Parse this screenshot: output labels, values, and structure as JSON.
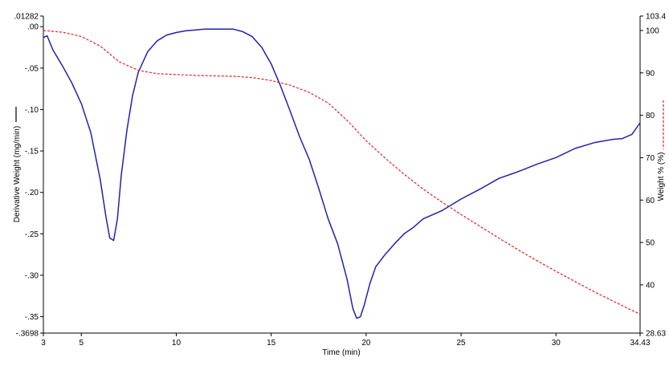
{
  "chart_data": {
    "type": "line",
    "xlabel": "Time (min)",
    "ylabel_left": "Derivative Weight (mg/min)",
    "ylabel_right": "Weight % (%)",
    "xlim": [
      3,
      34.43
    ],
    "ylim_left": [
      -0.3698,
      0.01282
    ],
    "ylim_right": [
      28.63,
      103.4
    ],
    "x_ticks": [
      3,
      5,
      10,
      15,
      20,
      25,
      30,
      34.43
    ],
    "x_tick_labels": [
      "3",
      "5",
      "10",
      "15",
      "20",
      "25",
      "30",
      "34.43"
    ],
    "left_ticks": [
      0.01282,
      0.0,
      -0.05,
      -0.1,
      -0.15,
      -0.2,
      -0.25,
      -0.3,
      -0.35,
      -0.3698
    ],
    "left_tick_labels": [
      ".01282",
      ".00",
      "-.05",
      "-.10",
      "-.15",
      "-.20",
      "-.25",
      "-.30",
      "-.35",
      "-.3698"
    ],
    "right_ticks": [
      103.4,
      100,
      90,
      80,
      70,
      60,
      50,
      40,
      28.63
    ],
    "right_tick_labels": [
      "103.4",
      "100",
      "90",
      "80",
      "70",
      "60",
      "50",
      "40",
      "28.63"
    ],
    "grid": false,
    "series": [
      {
        "axis": "left",
        "color": "#2222aa",
        "style": "solid",
        "x": [
          3.0,
          3.2,
          3.5,
          4.0,
          4.5,
          5.0,
          5.5,
          6.0,
          6.3,
          6.5,
          6.7,
          6.9,
          7.1,
          7.4,
          7.7,
          8.0,
          8.5,
          9.0,
          9.5,
          10.0,
          10.5,
          11.0,
          11.5,
          12.0,
          12.5,
          13.0,
          13.5,
          14.0,
          14.5,
          15.0,
          15.5,
          16.0,
          16.5,
          17.0,
          17.5,
          18.0,
          18.5,
          19.0,
          19.3,
          19.5,
          19.7,
          19.9,
          20.2,
          20.5,
          21.0,
          21.5,
          22.0,
          22.5,
          23.0,
          24.0,
          25.0,
          26.0,
          27.0,
          28.0,
          29.0,
          30.0,
          31.0,
          32.0,
          33.0,
          33.5,
          34.0,
          34.43
        ],
        "y": [
          -0.013,
          -0.011,
          -0.028,
          -0.047,
          -0.068,
          -0.093,
          -0.128,
          -0.185,
          -0.23,
          -0.255,
          -0.258,
          -0.232,
          -0.18,
          -0.125,
          -0.083,
          -0.055,
          -0.03,
          -0.017,
          -0.01,
          -0.007,
          -0.005,
          -0.004,
          -0.003,
          -0.003,
          -0.003,
          -0.003,
          -0.006,
          -0.012,
          -0.025,
          -0.045,
          -0.072,
          -0.102,
          -0.133,
          -0.16,
          -0.195,
          -0.232,
          -0.262,
          -0.305,
          -0.34,
          -0.352,
          -0.35,
          -0.336,
          -0.31,
          -0.29,
          -0.275,
          -0.262,
          -0.25,
          -0.242,
          -0.232,
          -0.222,
          -0.208,
          -0.196,
          -0.183,
          -0.175,
          -0.166,
          -0.158,
          -0.147,
          -0.14,
          -0.136,
          -0.135,
          -0.13,
          -0.116
        ]
      },
      {
        "axis": "right",
        "color": "#e02020",
        "style": "dashed",
        "x": [
          3.0,
          4.0,
          5.0,
          6.0,
          7.0,
          8.0,
          9.0,
          10.0,
          11.0,
          12.0,
          13.0,
          14.0,
          15.0,
          16.0,
          17.0,
          18.0,
          19.0,
          20.0,
          21.0,
          22.0,
          23.0,
          24.0,
          25.0,
          26.0,
          27.0,
          28.0,
          29.0,
          30.0,
          31.0,
          32.0,
          33.0,
          34.0,
          34.43
        ],
        "y": [
          100.0,
          99.6,
          98.6,
          96.3,
          92.6,
          90.6,
          89.8,
          89.6,
          89.4,
          89.3,
          89.2,
          88.9,
          88.2,
          87.1,
          85.4,
          82.9,
          78.8,
          74.0,
          69.9,
          66.1,
          62.6,
          59.5,
          56.6,
          53.8,
          51.0,
          48.3,
          45.7,
          43.2,
          40.8,
          38.4,
          36.2,
          34.0,
          33.1
        ]
      }
    ]
  }
}
